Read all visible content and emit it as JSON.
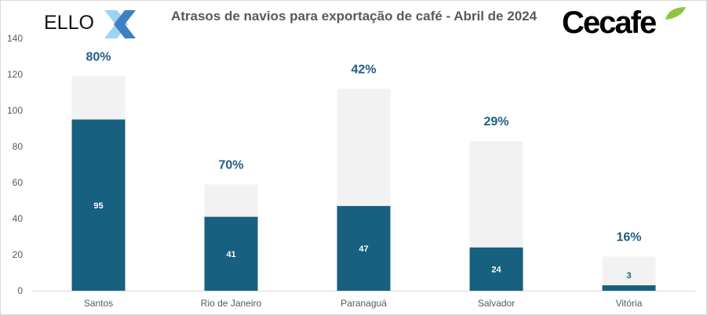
{
  "chart_data": {
    "type": "bar",
    "title": "Atrasos de navios para exportação de café - Abril de 2024",
    "categories": [
      "Santos",
      "Rio de Janeiro",
      "Paranaguá",
      "Salvador",
      "Vitória"
    ],
    "series": [
      {
        "values": [
          95,
          41,
          47,
          24,
          3
        ],
        "color": "#17607f"
      },
      {
        "values": [
          119,
          59,
          112,
          83,
          19
        ],
        "color": "#f2f2f2"
      }
    ],
    "percent_labels": [
      "80%",
      "70%",
      "42%",
      "29%",
      "16%"
    ],
    "ylim": [
      0,
      140
    ],
    "yticks": [
      0,
      20,
      40,
      60,
      80,
      100,
      120,
      140
    ],
    "grid": false,
    "xlabel": "",
    "ylabel": ""
  },
  "logos": {
    "left": "ELLO",
    "right": "Cecafe"
  },
  "colors": {
    "dark": "#17607f",
    "light": "#f2f2f2",
    "percent": "#1f5f85"
  }
}
